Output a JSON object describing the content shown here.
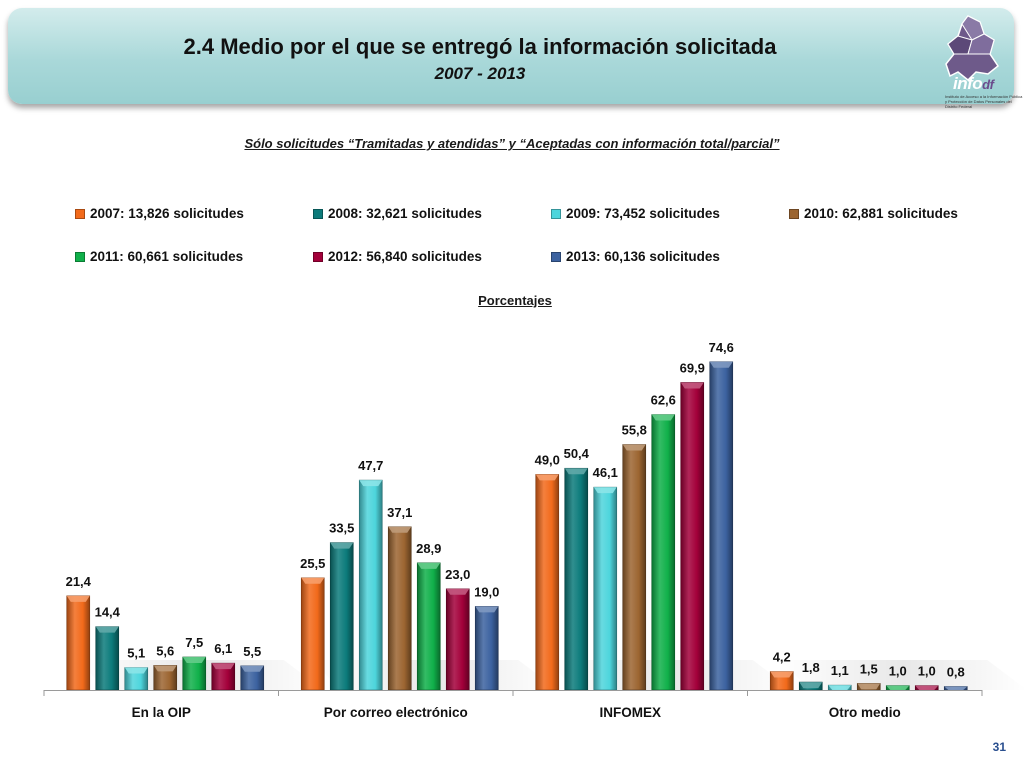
{
  "header": {
    "title": "2.4 Medio por el que se entregó la información solicitada",
    "subtitle": "2007 - 2013",
    "logo_text": "info",
    "logo_suffix": "df",
    "logo_caption": "Instituto de Acceso a la Información Pública y Protección de Datos Personales del Distrito Federal"
  },
  "note": "Sólo solicitudes “Tramitadas y atendidas” y “Aceptadas con información total/parcial”",
  "page_number": "31",
  "colors": {
    "header_band": "#a9d8d9",
    "series": [
      "#f26a1b",
      "#0c7b7b",
      "#4dd5dc",
      "#9c6531",
      "#10b04a",
      "#a3003a",
      "#3c62a0"
    ]
  },
  "chart_data": {
    "type": "bar",
    "ylabel": "Porcentajes",
    "ylim": [
      0,
      80
    ],
    "grid": false,
    "legend_position": "top",
    "categories": [
      "En la OIP",
      "Por correo electrónico",
      "INFOMEX",
      "Otro medio"
    ],
    "series": [
      {
        "name": "2007: 13,826 solicitudes",
        "values": [
          21.4,
          25.5,
          49.0,
          4.2
        ],
        "labels": [
          "21,4",
          "25,5",
          "49,0",
          "4,2"
        ]
      },
      {
        "name": "2008: 32,621 solicitudes",
        "values": [
          14.4,
          33.5,
          50.4,
          1.8
        ],
        "labels": [
          "14,4",
          "33,5",
          "50,4",
          "1,8"
        ]
      },
      {
        "name": "2009: 73,452 solicitudes",
        "values": [
          5.1,
          47.7,
          46.1,
          1.1
        ],
        "labels": [
          "5,1",
          "47,7",
          "46,1",
          "1,1"
        ]
      },
      {
        "name": "2010: 62,881 solicitudes",
        "values": [
          5.6,
          37.1,
          55.8,
          1.5
        ],
        "labels": [
          "5,6",
          "37,1",
          "55,8",
          "1,5"
        ]
      },
      {
        "name": "2011: 60,661 solicitudes",
        "values": [
          7.5,
          28.9,
          62.6,
          1.0
        ],
        "labels": [
          "7,5",
          "28,9",
          "62,6",
          "1,0"
        ]
      },
      {
        "name": "2012: 56,840 solicitudes",
        "values": [
          6.1,
          23.0,
          69.9,
          1.0
        ],
        "labels": [
          "6,1",
          "23,0",
          "69,9",
          "1,0"
        ]
      },
      {
        "name": "2013: 60,136 solicitudes",
        "values": [
          5.5,
          19.0,
          74.6,
          0.8
        ],
        "labels": [
          "5,5",
          "19,0",
          "74,6",
          "0,8"
        ]
      }
    ]
  }
}
